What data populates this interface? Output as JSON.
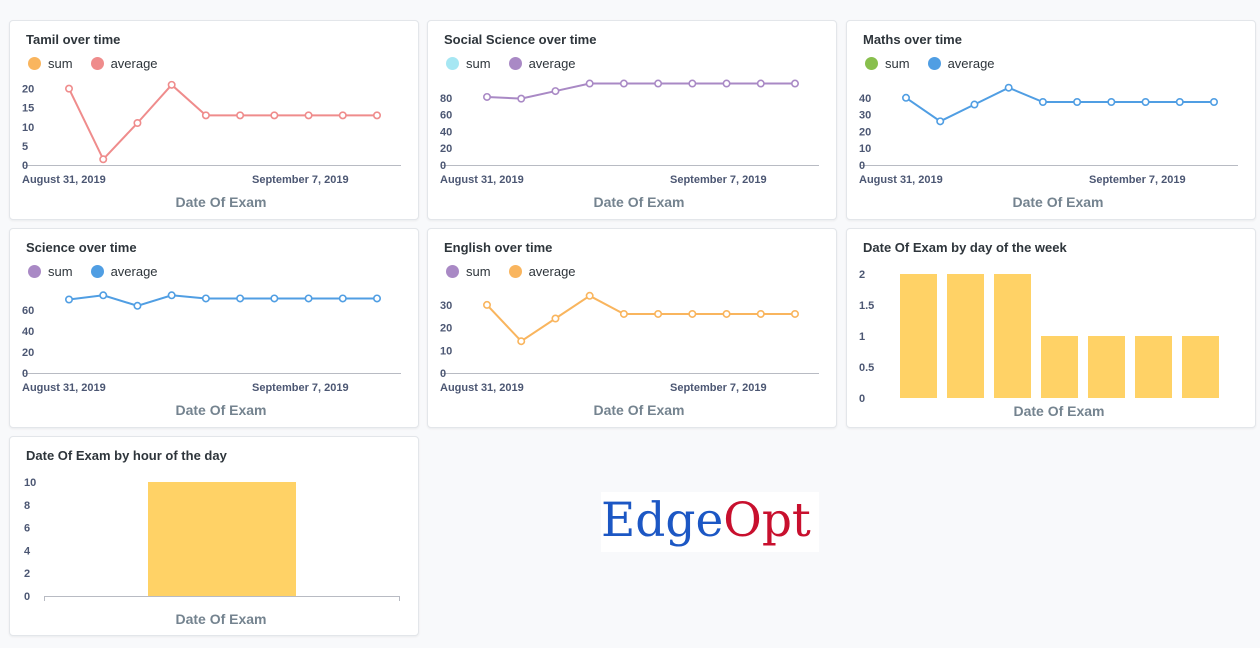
{
  "colors": {
    "pink": "#ef8c8c",
    "orange": "#f9b55e",
    "cyan": "#a6e7f3",
    "purple": "#a989c5",
    "green": "#88bf4d",
    "blue": "#509ee3",
    "bar_yellow": "#ffd266",
    "axis": "#b8bbc3"
  },
  "logo": {
    "part1": "Edge",
    "part2": "Opt"
  },
  "chart_data": [
    {
      "id": "tamil",
      "type": "line",
      "title": "Tamil over time",
      "legend": [
        {
          "label": "sum",
          "color": "#f9b55e"
        },
        {
          "label": "average",
          "color": "#ef8c8c"
        }
      ],
      "xlabel": "Date Of Exam",
      "x_tick_labels": [
        "August 31, 2019",
        "September 7, 2019"
      ],
      "yticks": [
        0,
        5,
        10,
        15,
        20
      ],
      "ylim": [
        0,
        22
      ],
      "series": [
        {
          "values": [
            20,
            1.5,
            11,
            21,
            13,
            13,
            13,
            13,
            13,
            13
          ],
          "color": "#ef8c8c"
        }
      ]
    },
    {
      "id": "social",
      "type": "line",
      "title": "Social Science over time",
      "legend": [
        {
          "label": "sum",
          "color": "#a6e7f3"
        },
        {
          "label": "average",
          "color": "#a989c5"
        }
      ],
      "xlabel": "Date Of Exam",
      "x_tick_labels": [
        "August 31, 2019",
        "September 7, 2019"
      ],
      "yticks": [
        0,
        20,
        40,
        60,
        80
      ],
      "ylim": [
        0,
        100
      ],
      "series": [
        {
          "values": [
            81,
            79,
            88,
            97,
            97,
            97,
            97,
            97,
            97,
            97
          ],
          "color": "#a989c5"
        }
      ]
    },
    {
      "id": "maths",
      "type": "line",
      "title": "Maths over time",
      "legend": [
        {
          "label": "sum",
          "color": "#88bf4d"
        },
        {
          "label": "average",
          "color": "#509ee3"
        }
      ],
      "xlabel": "Date Of Exam",
      "x_tick_labels": [
        "August 31, 2019",
        "September 7, 2019"
      ],
      "yticks": [
        0,
        10,
        20,
        30,
        40
      ],
      "ylim": [
        0,
        50
      ],
      "series": [
        {
          "values": [
            40,
            26,
            36,
            46,
            37.5,
            37.5,
            37.5,
            37.5,
            37.5,
            37.5
          ],
          "color": "#509ee3"
        }
      ]
    },
    {
      "id": "science",
      "type": "line",
      "title": "Science over time",
      "legend": [
        {
          "label": "sum",
          "color": "#a989c5"
        },
        {
          "label": "average",
          "color": "#509ee3"
        }
      ],
      "xlabel": "Date Of Exam",
      "x_tick_labels": [
        "August 31, 2019",
        "September 7, 2019"
      ],
      "yticks": [
        0,
        20,
        40,
        60
      ],
      "ylim": [
        0,
        80
      ],
      "series": [
        {
          "values": [
            70,
            74,
            64,
            74,
            71,
            71,
            71,
            71,
            71,
            71
          ],
          "color": "#509ee3"
        }
      ]
    },
    {
      "id": "english",
      "type": "line",
      "title": "English over time",
      "legend": [
        {
          "label": "sum",
          "color": "#a989c5"
        },
        {
          "label": "average",
          "color": "#f9b55e"
        }
      ],
      "xlabel": "Date Of Exam",
      "x_tick_labels": [
        "August 31, 2019",
        "September 7, 2019"
      ],
      "yticks": [
        0,
        10,
        20,
        30
      ],
      "ylim": [
        0,
        37
      ],
      "series": [
        {
          "values": [
            30,
            14,
            24,
            34,
            26,
            26,
            26,
            26,
            26,
            26
          ],
          "color": "#f9b55e"
        }
      ]
    },
    {
      "id": "dow",
      "type": "bar",
      "title": "Date Of Exam by day of the week",
      "xlabel": "Date Of Exam",
      "yticks": [
        "0",
        "0.5",
        "1",
        "1.5",
        "2"
      ],
      "ylim": [
        0,
        2
      ],
      "values": [
        2,
        2,
        2,
        1,
        1,
        1,
        1
      ],
      "color": "#ffd266"
    },
    {
      "id": "hour",
      "type": "bar",
      "title": "Date Of Exam by hour of the day",
      "xlabel": "Date Of Exam",
      "yticks": [
        "0",
        "2",
        "4",
        "6",
        "8",
        "10"
      ],
      "ylim": [
        0,
        10
      ],
      "values": [
        10
      ],
      "color": "#ffd266"
    }
  ]
}
